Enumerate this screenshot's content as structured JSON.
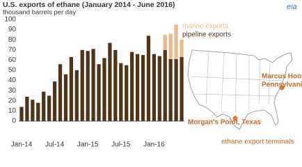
{
  "chart_data": {
    "type": "stacked-bar",
    "title": "U.S. exports of ethane (January 2014 - June 2016)",
    "subtitle": "thousand barrels per day",
    "logo": "eia",
    "categories": [
      "Jan-14",
      null,
      null,
      null,
      null,
      null,
      "Jul-14",
      null,
      null,
      null,
      null,
      null,
      "Jan-15",
      null,
      null,
      null,
      null,
      null,
      "Jul-15",
      null,
      null,
      null,
      null,
      null,
      "Jan-16",
      null,
      null,
      null,
      null,
      null
    ],
    "series": [
      {
        "name": "pipeline exports",
        "color": "#4f3419",
        "values": [
          14,
          24,
          21,
          18,
          29,
          25,
          39,
          56,
          46,
          63,
          50,
          70,
          69,
          71,
          56,
          62,
          77,
          70,
          57,
          55,
          68,
          66,
          65,
          84,
          66,
          64,
          70,
          61,
          61,
          63
        ]
      },
      {
        "name": "marine exports",
        "color": "#e9b987",
        "values": [
          null,
          null,
          null,
          null,
          null,
          null,
          null,
          null,
          null,
          null,
          null,
          null,
          null,
          null,
          null,
          null,
          null,
          null,
          null,
          null,
          null,
          null,
          null,
          null,
          null,
          null,
          15,
          25,
          34,
          17
        ]
      }
    ],
    "ylim": [
      0,
      100
    ],
    "yticks": [
      0,
      10,
      20,
      30,
      40,
      50,
      60,
      70,
      80,
      90,
      100
    ],
    "grid": false,
    "annotations": {
      "marcus_hook": [
        "Marcus Hook,",
        "Pennsylvania"
      ],
      "morgans_point": "Morgan's Point, Texas",
      "terminals": "ethane export terminals"
    }
  }
}
